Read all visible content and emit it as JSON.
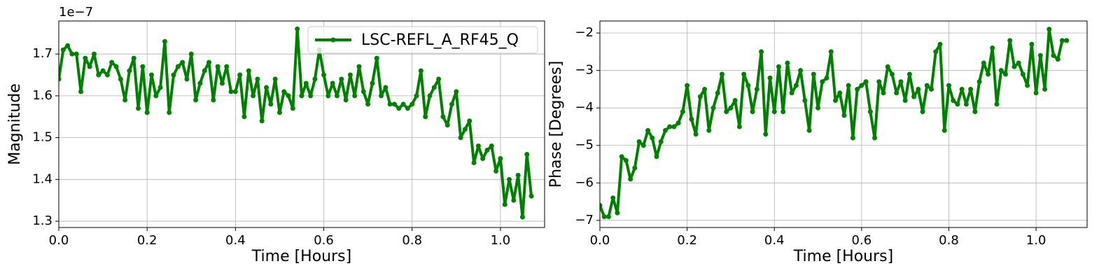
{
  "chart_data": [
    {
      "type": "line",
      "xlabel": "Time [Hours]",
      "ylabel": "Magnitude",
      "offset_label": "1e−7",
      "xlim": [
        0,
        1.1
      ],
      "ylim": [
        1.285,
        1.779
      ],
      "xticks": [
        {
          "value": 0,
          "label": "0.0"
        },
        0.2,
        0.4,
        0.6,
        0.8,
        {
          "value": 1,
          "label": "1.0"
        }
      ],
      "yticks": [
        1.3,
        1.4,
        1.5,
        1.6,
        1.7
      ],
      "grid": true,
      "legend": "upper right",
      "x": [
        0,
        0.01,
        0.02,
        0.03,
        0.04,
        0.05,
        0.06,
        0.07,
        0.08,
        0.09,
        0.1,
        0.11,
        0.12,
        0.13,
        0.14,
        0.15,
        0.16,
        0.17,
        0.18,
        0.19,
        0.2,
        0.21,
        0.22,
        0.23,
        0.24,
        0.25,
        0.26,
        0.27,
        0.28,
        0.29,
        0.3,
        0.31,
        0.32,
        0.33,
        0.34,
        0.35,
        0.36,
        0.37,
        0.38,
        0.39,
        0.4,
        0.41,
        0.42,
        0.43,
        0.44,
        0.45,
        0.46,
        0.47,
        0.48,
        0.49,
        0.5,
        0.51,
        0.52,
        0.53,
        0.54,
        0.55,
        0.56,
        0.57,
        0.58,
        0.59,
        0.6,
        0.61,
        0.62,
        0.63,
        0.64,
        0.65,
        0.66,
        0.67,
        0.68,
        0.69,
        0.7,
        0.71,
        0.72,
        0.73,
        0.74,
        0.75,
        0.76,
        0.77,
        0.78,
        0.79,
        0.8,
        0.81,
        0.82,
        0.83,
        0.84,
        0.85,
        0.86,
        0.87,
        0.88,
        0.89,
        0.9,
        0.91,
        0.92,
        0.93,
        0.94,
        0.95,
        0.96,
        0.97,
        0.98,
        0.99,
        1,
        1.01,
        1.02,
        1.03,
        1.04,
        1.05,
        1.06,
        1.07
      ],
      "series": [
        {
          "name": "LSC-REFL_A_RF45_Q",
          "color": "#008000",
          "values": [
            1.64,
            1.71,
            1.72,
            1.7,
            1.7,
            1.61,
            1.69,
            1.67,
            1.7,
            1.65,
            1.66,
            1.65,
            1.68,
            1.67,
            1.64,
            1.59,
            1.66,
            1.69,
            1.57,
            1.67,
            1.56,
            1.65,
            1.6,
            1.62,
            1.73,
            1.56,
            1.65,
            1.67,
            1.68,
            1.64,
            1.7,
            1.59,
            1.63,
            1.66,
            1.68,
            1.59,
            1.67,
            1.63,
            1.67,
            1.61,
            1.61,
            1.65,
            1.55,
            1.66,
            1.6,
            1.64,
            1.54,
            1.62,
            1.58,
            1.64,
            1.56,
            1.61,
            1.6,
            1.57,
            1.76,
            1.6,
            1.63,
            1.6,
            1.64,
            1.71,
            1.65,
            1.6,
            1.63,
            1.6,
            1.64,
            1.59,
            1.65,
            1.6,
            1.67,
            1.61,
            1.58,
            1.63,
            1.69,
            1.6,
            1.62,
            1.58,
            1.58,
            1.57,
            1.58,
            1.57,
            1.58,
            1.6,
            1.66,
            1.55,
            1.6,
            1.62,
            1.64,
            1.55,
            1.53,
            1.58,
            1.61,
            1.5,
            1.52,
            1.54,
            1.44,
            1.48,
            1.45,
            1.47,
            1.48,
            1.42,
            1.45,
            1.34,
            1.4,
            1.35,
            1.41,
            1.31,
            1.46,
            1.36
          ]
        }
      ]
    },
    {
      "type": "line",
      "xlabel": "Time [Hours]",
      "ylabel": "Phase [Degrees]",
      "xlim": [
        0,
        1.117
      ],
      "ylim": [
        -7.19,
        -1.68
      ],
      "xticks": [
        {
          "value": 0,
          "label": "0.0"
        },
        0.2,
        0.4,
        0.6,
        0.8,
        {
          "value": 1,
          "label": "1.0"
        }
      ],
      "yticks": [
        {
          "value": -7,
          "label": "−7"
        },
        {
          "value": -6,
          "label": "−6"
        },
        {
          "value": -5,
          "label": "−5"
        },
        {
          "value": -4,
          "label": "−4"
        },
        {
          "value": -3,
          "label": "−3"
        },
        {
          "value": -2,
          "label": "−2"
        }
      ],
      "grid": true,
      "x": [
        0,
        0.01,
        0.02,
        0.03,
        0.04,
        0.05,
        0.06,
        0.07,
        0.08,
        0.09,
        0.1,
        0.11,
        0.12,
        0.13,
        0.14,
        0.15,
        0.16,
        0.17,
        0.18,
        0.19,
        0.2,
        0.21,
        0.22,
        0.23,
        0.24,
        0.25,
        0.26,
        0.27,
        0.28,
        0.29,
        0.3,
        0.31,
        0.32,
        0.33,
        0.34,
        0.35,
        0.36,
        0.37,
        0.38,
        0.39,
        0.4,
        0.41,
        0.42,
        0.43,
        0.44,
        0.45,
        0.46,
        0.47,
        0.48,
        0.49,
        0.5,
        0.51,
        0.52,
        0.53,
        0.54,
        0.55,
        0.56,
        0.57,
        0.58,
        0.59,
        0.6,
        0.61,
        0.62,
        0.63,
        0.64,
        0.65,
        0.66,
        0.67,
        0.68,
        0.69,
        0.7,
        0.71,
        0.72,
        0.73,
        0.74,
        0.75,
        0.76,
        0.77,
        0.78,
        0.79,
        0.8,
        0.81,
        0.82,
        0.83,
        0.84,
        0.85,
        0.86,
        0.87,
        0.88,
        0.89,
        0.9,
        0.91,
        0.92,
        0.93,
        0.94,
        0.95,
        0.96,
        0.97,
        0.98,
        0.99,
        1,
        1.01,
        1.02,
        1.03,
        1.04,
        1.05,
        1.06,
        1.07
      ],
      "series": [
        {
          "color": "#008000",
          "values": [
            -6.6,
            -6.9,
            -6.9,
            -6.4,
            -6.8,
            -5.3,
            -5.4,
            -5.9,
            -5.6,
            -4.9,
            -5.0,
            -4.6,
            -4.8,
            -5.3,
            -4.9,
            -4.6,
            -4.5,
            -4.5,
            -4.4,
            -4.1,
            -3.4,
            -4.3,
            -4.7,
            -3.7,
            -3.5,
            -4.6,
            -4.0,
            -3.6,
            -3.1,
            -4.1,
            -4.0,
            -3.8,
            -4.5,
            -3.1,
            -3.4,
            -4.1,
            -3.5,
            -2.5,
            -4.7,
            -3.2,
            -4.1,
            -2.9,
            -4.1,
            -2.8,
            -3.6,
            -3.4,
            -3.0,
            -3.8,
            -4.6,
            -3.1,
            -4.0,
            -3.3,
            -3.2,
            -2.5,
            -3.8,
            -3.6,
            -4.2,
            -3.4,
            -4.8,
            -3.5,
            -3.4,
            -3.3,
            -4.1,
            -4.8,
            -3.3,
            -3.6,
            -2.9,
            -3.1,
            -3.6,
            -3.3,
            -3.8,
            -3.1,
            -3.7,
            -3.5,
            -4.1,
            -3.4,
            -3.5,
            -2.5,
            -2.3,
            -4.6,
            -3.4,
            -3.8,
            -3.9,
            -3.5,
            -3.9,
            -3.5,
            -4.1,
            -3.3,
            -2.8,
            -3.1,
            -2.4,
            -3.9,
            -3.0,
            -3.1,
            -2.2,
            -2.9,
            -2.8,
            -3.1,
            -3.4,
            -2.3,
            -3.6,
            -2.6,
            -3.5,
            -1.9,
            -2.6,
            -2.7,
            -2.2,
            -2.2
          ]
        }
      ]
    }
  ]
}
